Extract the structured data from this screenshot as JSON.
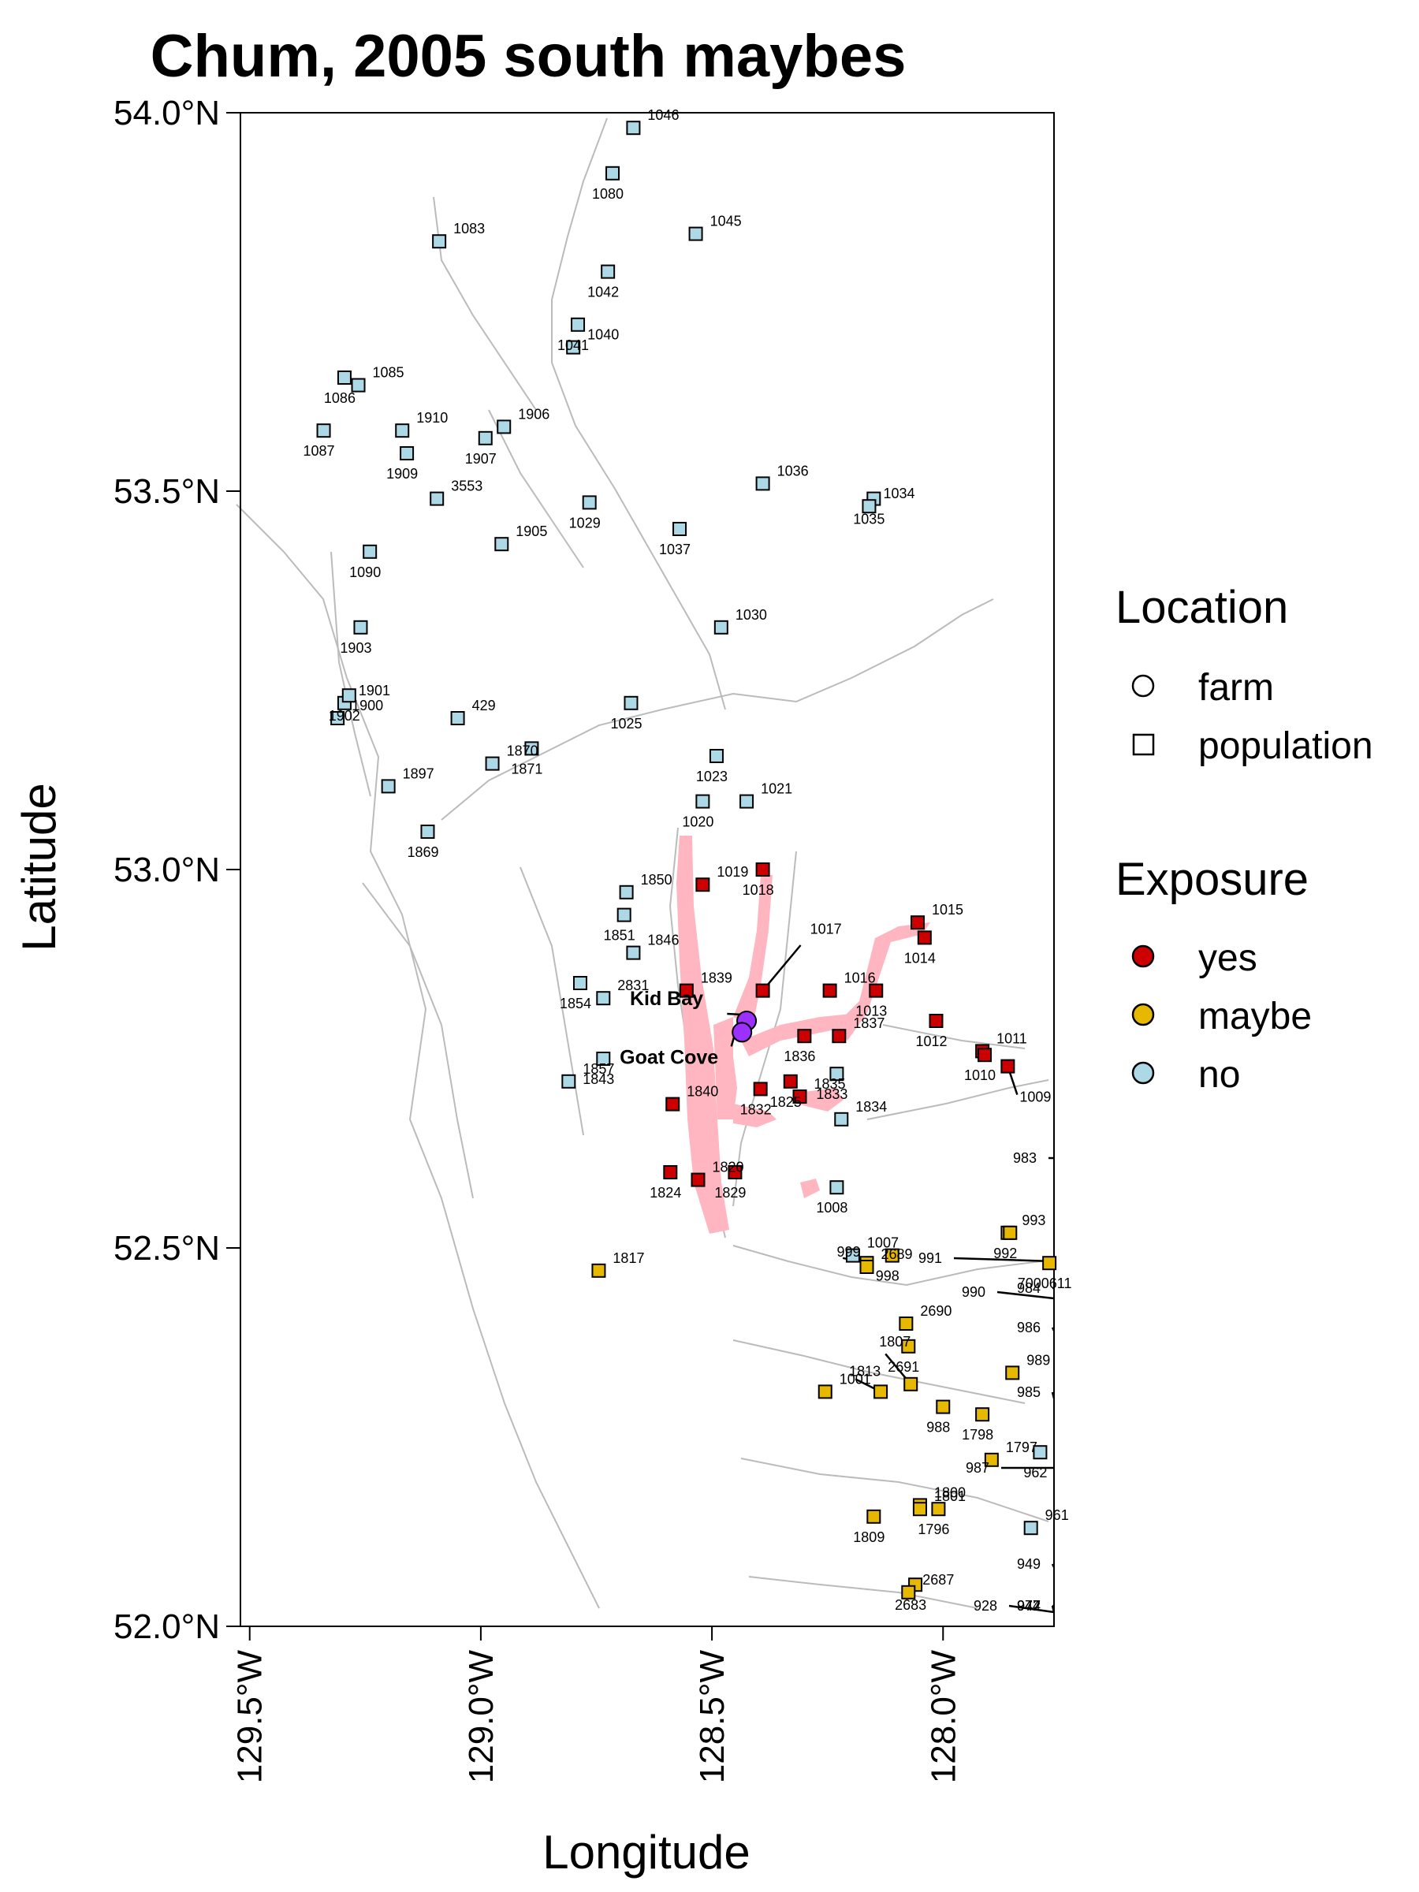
{
  "title": "Chum, 2005 south maybes",
  "axes": {
    "xlabel": "Longitude",
    "ylabel": "Latitude",
    "xlim": [
      -129.52,
      -127.76
    ],
    "ylim": [
      52.0,
      54.0
    ],
    "xticks": [
      {
        "value": -129.5,
        "label": "129.5°W"
      },
      {
        "value": -129.0,
        "label": "129.0°W"
      },
      {
        "value": -128.5,
        "label": "128.5°W"
      },
      {
        "value": -128.0,
        "label": "128.0°W"
      }
    ],
    "yticks": [
      {
        "value": 54.0,
        "label": "54.0°N"
      },
      {
        "value": 53.5,
        "label": "53.5°N"
      },
      {
        "value": 53.0,
        "label": "53.0°N"
      },
      {
        "value": 52.5,
        "label": "52.5°N"
      },
      {
        "value": 52.0,
        "label": "52.0°N"
      }
    ]
  },
  "legend": {
    "location": {
      "title": "Location",
      "items": [
        {
          "label": "farm",
          "shape": "circle"
        },
        {
          "label": "population",
          "shape": "square"
        }
      ]
    },
    "exposure": {
      "title": "Exposure",
      "items": [
        {
          "label": "yes",
          "color": "#CC0000"
        },
        {
          "label": "maybe",
          "color": "#E6B800"
        },
        {
          "label": "no",
          "color": "#ADD8E6"
        }
      ]
    }
  },
  "colors": {
    "yes": "#CC0000",
    "maybe": "#E6B800",
    "no": "#ADD8E6",
    "farm": "#9B30FF",
    "exposure_zone": "#FFB6C1",
    "coastline": "#BBBBBB"
  },
  "chart_data": {
    "type": "scatter",
    "farms": [
      {
        "name": "Kid Bay",
        "lon": -128.425,
        "lat": 52.8
      },
      {
        "name": "Goat Cove",
        "lon": -128.435,
        "lat": 52.785
      }
    ],
    "sites": [
      {
        "id": "1046",
        "lon": -128.67,
        "lat": 53.98,
        "exposure": "no"
      },
      {
        "id": "1080",
        "lon": -128.715,
        "lat": 53.92,
        "exposure": "no"
      },
      {
        "id": "1083",
        "lon": -129.09,
        "lat": 53.83,
        "exposure": "no"
      },
      {
        "id": "1042",
        "lon": -128.725,
        "lat": 53.79,
        "exposure": "no"
      },
      {
        "id": "1045",
        "lon": -128.535,
        "lat": 53.84,
        "exposure": "no"
      },
      {
        "id": "1041",
        "lon": -128.79,
        "lat": 53.72,
        "exposure": "no"
      },
      {
        "id": "1040",
        "lon": -128.8,
        "lat": 53.69,
        "exposure": "no"
      },
      {
        "id": "1086",
        "lon": -129.295,
        "lat": 53.65,
        "exposure": "no"
      },
      {
        "id": "1085",
        "lon": -129.265,
        "lat": 53.64,
        "exposure": "no"
      },
      {
        "id": "1087",
        "lon": -129.34,
        "lat": 53.58,
        "exposure": "no"
      },
      {
        "id": "1910",
        "lon": -129.17,
        "lat": 53.58,
        "exposure": "no"
      },
      {
        "id": "1909",
        "lon": -129.16,
        "lat": 53.55,
        "exposure": "no"
      },
      {
        "id": "1906",
        "lon": -128.95,
        "lat": 53.585,
        "exposure": "no"
      },
      {
        "id": "1907",
        "lon": -128.99,
        "lat": 53.57,
        "exposure": "no"
      },
      {
        "id": "3553",
        "lon": -129.095,
        "lat": 53.49,
        "exposure": "no"
      },
      {
        "id": "1029",
        "lon": -128.765,
        "lat": 53.485,
        "exposure": "no"
      },
      {
        "id": "1036",
        "lon": -128.39,
        "lat": 53.51,
        "exposure": "no"
      },
      {
        "id": "1035",
        "lon": -128.15,
        "lat": 53.49,
        "exposure": "no"
      },
      {
        "id": "1034",
        "lon": -128.16,
        "lat": 53.48,
        "exposure": "no"
      },
      {
        "id": "1090",
        "lon": -129.24,
        "lat": 53.42,
        "exposure": "no"
      },
      {
        "id": "1905",
        "lon": -128.955,
        "lat": 53.43,
        "exposure": "no"
      },
      {
        "id": "1037",
        "lon": -128.57,
        "lat": 53.45,
        "exposure": "no"
      },
      {
        "id": "1030",
        "lon": -128.48,
        "lat": 53.32,
        "exposure": "no"
      },
      {
        "id": "1903",
        "lon": -129.26,
        "lat": 53.32,
        "exposure": "no"
      },
      {
        "id": "1901",
        "lon": -129.295,
        "lat": 53.22,
        "exposure": "no"
      },
      {
        "id": "1902",
        "lon": -129.285,
        "lat": 53.23,
        "exposure": "no"
      },
      {
        "id": "1900",
        "lon": -129.31,
        "lat": 53.2,
        "exposure": "no"
      },
      {
        "id": "1025",
        "lon": -128.675,
        "lat": 53.22,
        "exposure": "no"
      },
      {
        "id": "429",
        "lon": -129.05,
        "lat": 53.2,
        "exposure": "no"
      },
      {
        "id": "1871",
        "lon": -128.89,
        "lat": 53.16,
        "exposure": "no"
      },
      {
        "id": "1870",
        "lon": -128.975,
        "lat": 53.14,
        "exposure": "no"
      },
      {
        "id": "1023",
        "lon": -128.49,
        "lat": 53.15,
        "exposure": "no"
      },
      {
        "id": "1897",
        "lon": -129.2,
        "lat": 53.11,
        "exposure": "no"
      },
      {
        "id": "1020",
        "lon": -128.52,
        "lat": 53.09,
        "exposure": "no"
      },
      {
        "id": "1021",
        "lon": -128.425,
        "lat": 53.09,
        "exposure": "no"
      },
      {
        "id": "1869",
        "lon": -129.115,
        "lat": 53.05,
        "exposure": "no"
      },
      {
        "id": "1850",
        "lon": -128.685,
        "lat": 52.97,
        "exposure": "no"
      },
      {
        "id": "1851",
        "lon": -128.69,
        "lat": 52.94,
        "exposure": "no"
      },
      {
        "id": "1846",
        "lon": -128.67,
        "lat": 52.89,
        "exposure": "no"
      },
      {
        "id": "1854",
        "lon": -128.785,
        "lat": 52.85,
        "exposure": "no"
      },
      {
        "id": "2831",
        "lon": -128.735,
        "lat": 52.83,
        "exposure": "no"
      },
      {
        "id": "1843",
        "lon": -128.735,
        "lat": 52.75,
        "exposure": "no"
      },
      {
        "id": "1857",
        "lon": -128.81,
        "lat": 52.72,
        "exposure": "no"
      },
      {
        "id": "1833",
        "lon": -128.23,
        "lat": 52.73,
        "exposure": "no"
      },
      {
        "id": "1834",
        "lon": -128.22,
        "lat": 52.67,
        "exposure": "no"
      },
      {
        "id": "1008",
        "lon": -128.23,
        "lat": 52.58,
        "exposure": "no"
      },
      {
        "id": "1007",
        "lon": -128.195,
        "lat": 52.49,
        "exposure": "no"
      },
      {
        "id": "962",
        "lon": -127.79,
        "lat": 52.23,
        "exposure": "no"
      },
      {
        "id": "961",
        "lon": -127.81,
        "lat": 52.13,
        "exposure": "no"
      },
      {
        "id": "1018",
        "lon": -128.39,
        "lat": 53.0,
        "exposure": "yes"
      },
      {
        "id": "1019",
        "lon": -128.52,
        "lat": 52.98,
        "exposure": "yes"
      },
      {
        "id": "1017",
        "lon": -128.39,
        "lat": 52.84,
        "exposure": "yes"
      },
      {
        "id": "1016",
        "lon": -128.245,
        "lat": 52.84,
        "exposure": "yes"
      },
      {
        "id": "1013",
        "lon": -128.145,
        "lat": 52.84,
        "exposure": "yes"
      },
      {
        "id": "1015",
        "lon": -128.055,
        "lat": 52.93,
        "exposure": "yes"
      },
      {
        "id": "1014",
        "lon": -128.04,
        "lat": 52.91,
        "exposure": "yes"
      },
      {
        "id": "1839",
        "lon": -128.555,
        "lat": 52.84,
        "exposure": "yes"
      },
      {
        "id": "1836",
        "lon": -128.3,
        "lat": 52.78,
        "exposure": "yes"
      },
      {
        "id": "1837",
        "lon": -128.225,
        "lat": 52.78,
        "exposure": "yes"
      },
      {
        "id": "1012",
        "lon": -128.015,
        "lat": 52.8,
        "exposure": "yes"
      },
      {
        "id": "1011",
        "lon": -127.915,
        "lat": 52.76,
        "exposure": "yes"
      },
      {
        "id": "1010",
        "lon": -127.91,
        "lat": 52.755,
        "exposure": "yes"
      },
      {
        "id": "1009",
        "lon": -127.86,
        "lat": 52.74,
        "exposure": "yes"
      },
      {
        "id": "1825",
        "lon": -128.33,
        "lat": 52.72,
        "exposure": "yes"
      },
      {
        "id": "1835",
        "lon": -128.31,
        "lat": 52.7,
        "exposure": "yes"
      },
      {
        "id": "1832",
        "lon": -128.395,
        "lat": 52.71,
        "exposure": "yes"
      },
      {
        "id": "1840",
        "lon": -128.585,
        "lat": 52.69,
        "exposure": "yes"
      },
      {
        "id": "1824",
        "lon": -128.59,
        "lat": 52.6,
        "exposure": "yes"
      },
      {
        "id": "1820",
        "lon": -128.53,
        "lat": 52.59,
        "exposure": "yes"
      },
      {
        "id": "1829",
        "lon": -128.45,
        "lat": 52.6,
        "exposure": "yes"
      },
      {
        "id": "1817",
        "lon": -128.745,
        "lat": 52.47,
        "exposure": "maybe"
      },
      {
        "id": "999",
        "lon": -128.165,
        "lat": 52.48,
        "exposure": "maybe"
      },
      {
        "id": "2689",
        "lon": -128.165,
        "lat": 52.475,
        "exposure": "maybe"
      },
      {
        "id": "998",
        "lon": -128.11,
        "lat": 52.49,
        "exposure": "maybe"
      },
      {
        "id": "993",
        "lon": -127.86,
        "lat": 52.52,
        "exposure": "maybe"
      },
      {
        "id": "992",
        "lon": -127.855,
        "lat": 52.52,
        "exposure": "maybe"
      },
      {
        "id": "2690",
        "lon": -128.08,
        "lat": 52.4,
        "exposure": "maybe"
      },
      {
        "id": "2691",
        "lon": -128.075,
        "lat": 52.37,
        "exposure": "maybe"
      },
      {
        "id": "1001",
        "lon": -128.255,
        "lat": 52.31,
        "exposure": "maybe"
      },
      {
        "id": "1813",
        "lon": -128.135,
        "lat": 52.31,
        "exposure": "maybe"
      },
      {
        "id": "1807",
        "lon": -128.07,
        "lat": 52.32,
        "exposure": "maybe"
      },
      {
        "id": "988",
        "lon": -128.0,
        "lat": 52.29,
        "exposure": "maybe"
      },
      {
        "id": "989",
        "lon": -127.85,
        "lat": 52.335,
        "exposure": "maybe"
      },
      {
        "id": "1798",
        "lon": -127.915,
        "lat": 52.28,
        "exposure": "maybe"
      },
      {
        "id": "1797",
        "lon": -127.895,
        "lat": 52.22,
        "exposure": "maybe"
      },
      {
        "id": "1809",
        "lon": -128.15,
        "lat": 52.145,
        "exposure": "maybe"
      },
      {
        "id": "1800",
        "lon": -128.05,
        "lat": 52.16,
        "exposure": "maybe"
      },
      {
        "id": "1796",
        "lon": -128.01,
        "lat": 52.155,
        "exposure": "maybe"
      },
      {
        "id": "1801",
        "lon": -128.05,
        "lat": 52.155,
        "exposure": "maybe"
      },
      {
        "id": "2683",
        "lon": -128.06,
        "lat": 52.055,
        "exposure": "maybe"
      },
      {
        "id": "2687",
        "lon": -128.075,
        "lat": 52.045,
        "exposure": "maybe"
      },
      {
        "id": "7000611",
        "lon": -127.77,
        "lat": 52.48,
        "exposure": "maybe"
      }
    ],
    "edge_labels": [
      "983",
      "991",
      "990",
      "984",
      "986",
      "985",
      "987",
      "949",
      "928",
      "942",
      "944",
      "977"
    ]
  }
}
